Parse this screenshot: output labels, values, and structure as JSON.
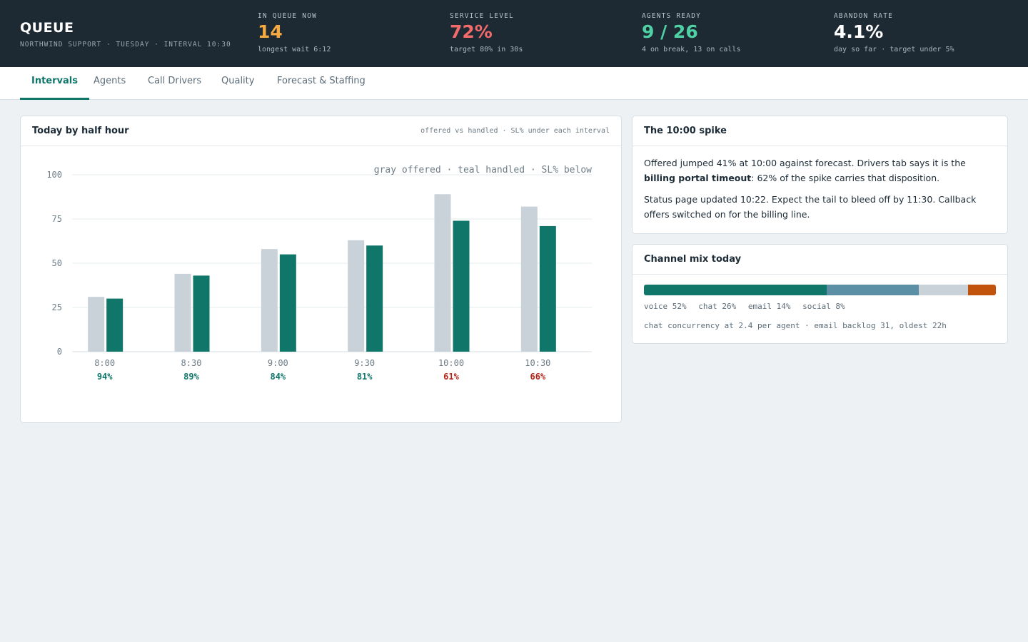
{
  "header": {
    "title": "QUEUE",
    "subtitle": "NORTHWIND SUPPORT · TUESDAY · INTERVAL 10:30"
  },
  "kpis": [
    {
      "label": "IN QUEUE NOW",
      "value": "14",
      "sub": "longest wait 6:12",
      "color": "#f5a941"
    },
    {
      "label": "SERVICE LEVEL",
      "value": "72%",
      "sub": "target 80% in 30s",
      "color": "#f26a6a"
    },
    {
      "label": "AGENTS READY",
      "value": "9 / 26",
      "sub": "4 on break, 13 on calls",
      "color": "#4fd1a5"
    },
    {
      "label": "ABANDON RATE",
      "value": "4.1%",
      "sub": "day so far · target under 5%",
      "color": "#ffffff"
    }
  ],
  "tabs": [
    {
      "label": "Intervals",
      "active": true
    },
    {
      "label": "Agents",
      "active": false
    },
    {
      "label": "Call Drivers",
      "active": false
    },
    {
      "label": "Quality",
      "active": false
    },
    {
      "label": "Forecast & Staffing",
      "active": false
    }
  ],
  "chart_card": {
    "title": "Today by half hour",
    "note": "offered vs handled · SL% under each interval"
  },
  "chart_data": {
    "type": "bar",
    "annotation": "gray offered · teal handled · SL% below",
    "categories": [
      "8:00",
      "8:30",
      "9:00",
      "9:30",
      "10:00",
      "10:30"
    ],
    "series": [
      {
        "name": "offered",
        "color": "#c8d2d8",
        "values": [
          31,
          44,
          58,
          63,
          89,
          82
        ]
      },
      {
        "name": "handled",
        "color": "#0f7669",
        "values": [
          30,
          43,
          55,
          60,
          74,
          71
        ]
      }
    ],
    "sl": [
      "94%",
      "89%",
      "84%",
      "81%",
      "61%",
      "66%"
    ],
    "sl_colors": [
      "#0f7669",
      "#0f7669",
      "#0f7669",
      "#0f7669",
      "#b42318",
      "#b42318"
    ],
    "yticks": [
      0,
      25,
      50,
      75,
      100
    ],
    "ylim": [
      0,
      100
    ],
    "grid": true
  },
  "spike_card": {
    "title": "The 10:00 spike",
    "p1_before": "Offered jumped 41% at 10:00 against forecast. Drivers tab says it is the ",
    "p1_bold": "billing portal timeout",
    "p1_after": ": 62% of the spike carries that disposition.",
    "p2": "Status page updated 10:22. Expect the tail to bleed off by 11:30. Callback offers switched on for the billing line."
  },
  "mix_card": {
    "title": "Channel mix today",
    "channels": [
      {
        "name": "voice",
        "pct": 52,
        "label": "voice 52%",
        "color": "#0f7669"
      },
      {
        "name": "chat",
        "pct": 26,
        "label": "chat 26%",
        "color": "#5a8fa5"
      },
      {
        "name": "email",
        "pct": 14,
        "label": "email 14%",
        "color": "#c8d2d8"
      },
      {
        "name": "social",
        "pct": 8,
        "label": "social 8%",
        "color": "#c2530c"
      }
    ],
    "note": "chat concurrency at 2.4 per agent · email backlog 31, oldest 22h"
  }
}
